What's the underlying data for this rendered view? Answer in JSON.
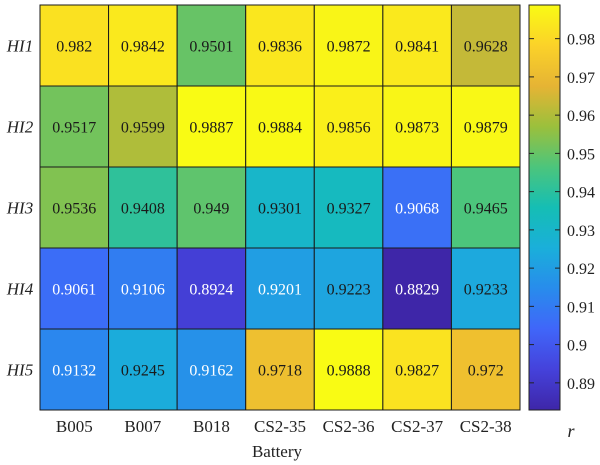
{
  "chart_data": {
    "type": "heatmap",
    "xlabel": "Battery",
    "ylabel": "",
    "categories_x": [
      "B005",
      "B007",
      "B018",
      "CS2-35",
      "CS2-36",
      "CS2-37",
      "CS2-38"
    ],
    "categories_y": [
      "HI1",
      "HI2",
      "HI3",
      "HI4",
      "HI5"
    ],
    "values": [
      [
        0.982,
        0.9842,
        0.9501,
        0.9836,
        0.9872,
        0.9841,
        0.9628
      ],
      [
        0.9517,
        0.9599,
        0.9887,
        0.9884,
        0.9856,
        0.9873,
        0.9879
      ],
      [
        0.9536,
        0.9408,
        0.949,
        0.9301,
        0.9327,
        0.9068,
        0.9465
      ],
      [
        0.9061,
        0.9106,
        0.8924,
        0.9201,
        0.9223,
        0.8829,
        0.9233
      ],
      [
        0.9132,
        0.9245,
        0.9162,
        0.9718,
        0.9888,
        0.9827,
        0.972
      ]
    ],
    "value_labels": [
      [
        "0.982",
        "0.9842",
        "0.9501",
        "0.9836",
        "0.9872",
        "0.9841",
        "0.9628"
      ],
      [
        "0.9517",
        "0.9599",
        "0.9887",
        "0.9884",
        "0.9856",
        "0.9873",
        "0.9879"
      ],
      [
        "0.9536",
        "0.9408",
        "0.949",
        "0.9301",
        "0.9327",
        "0.9068",
        "0.9465"
      ],
      [
        "0.9061",
        "0.9106",
        "0.8924",
        "0.9201",
        "0.9223",
        "0.8829",
        "0.9233"
      ],
      [
        "0.9132",
        "0.9245",
        "0.9162",
        "0.9718",
        "0.9888",
        "0.9827",
        "0.972"
      ]
    ],
    "colorbar": {
      "label": "r",
      "range": [
        0.8829,
        0.9888
      ],
      "ticks": [
        0.89,
        0.9,
        0.91,
        0.92,
        0.93,
        0.94,
        0.95,
        0.96,
        0.97,
        0.98
      ],
      "tick_labels": [
        "0.89",
        "0.9",
        "0.91",
        "0.92",
        "0.93",
        "0.94",
        "0.95",
        "0.96",
        "0.97",
        "0.98"
      ],
      "colormap": "parula",
      "position": "right"
    },
    "grid": false
  }
}
